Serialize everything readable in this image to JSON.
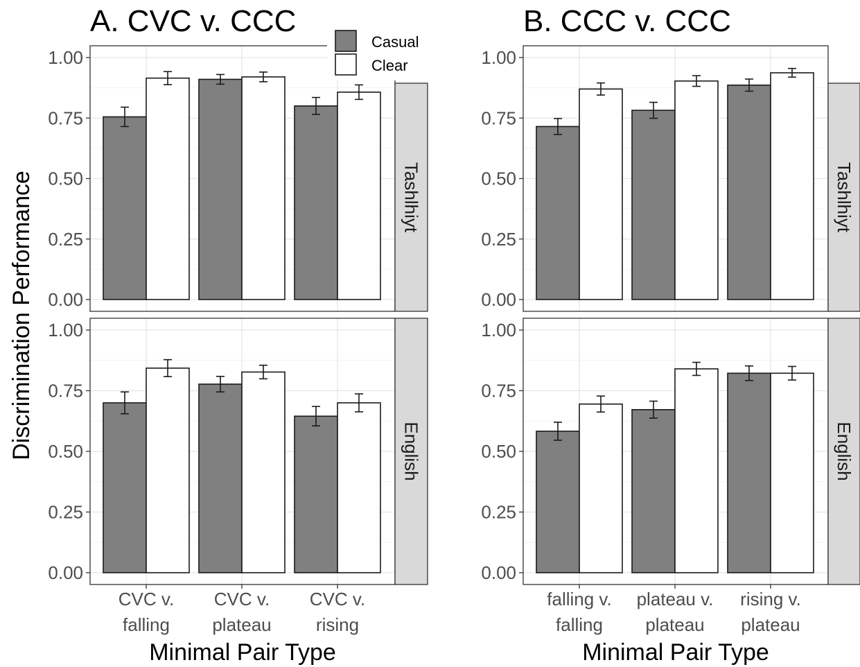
{
  "chart_data": {
    "type": "bar",
    "ylabel": "Discrimination Performance",
    "xlabel": "Minimal Pair Type",
    "ylim": [
      0,
      1.05
    ],
    "yticks": [
      "0.00",
      "0.25",
      "0.50",
      "0.75",
      "1.00"
    ],
    "legend": {
      "placement": "top-center",
      "entries": [
        {
          "name": "Casual",
          "color": "#808080"
        },
        {
          "name": "Clear",
          "color": "#ffffff"
        }
      ]
    },
    "grid": true,
    "panels": [
      {
        "title": "A. CVC v. CCC",
        "categories": [
          [
            "CVC v.",
            "falling"
          ],
          [
            "CVC v.",
            "plateau"
          ],
          [
            "CVC v.",
            "rising"
          ]
        ],
        "rows": [
          {
            "strip": "Tashlhiyt",
            "series": [
              {
                "name": "Casual",
                "values": [
                  0.755,
                  0.91,
                  0.8
                ],
                "err": [
                  0.04,
                  0.02,
                  0.035
                ]
              },
              {
                "name": "Clear",
                "values": [
                  0.915,
                  0.92,
                  0.857
                ],
                "err": [
                  0.027,
                  0.02,
                  0.03
                ]
              }
            ]
          },
          {
            "strip": "English",
            "series": [
              {
                "name": "Casual",
                "values": [
                  0.7,
                  0.777,
                  0.645
                ],
                "err": [
                  0.045,
                  0.032,
                  0.04
                ]
              },
              {
                "name": "Clear",
                "values": [
                  0.843,
                  0.827,
                  0.7
                ],
                "err": [
                  0.035,
                  0.028,
                  0.037
                ]
              }
            ]
          }
        ]
      },
      {
        "title": "B. CCC v. CCC",
        "categories": [
          [
            "falling v.",
            "falling"
          ],
          [
            "plateau v.",
            "plateau"
          ],
          [
            "rising v.",
            "plateau"
          ]
        ],
        "rows": [
          {
            "strip": "Tashlhiyt",
            "series": [
              {
                "name": "Casual",
                "values": [
                  0.715,
                  0.782,
                  0.886
                ],
                "err": [
                  0.033,
                  0.033,
                  0.025
                ]
              },
              {
                "name": "Clear",
                "values": [
                  0.87,
                  0.903,
                  0.937
                ],
                "err": [
                  0.025,
                  0.022,
                  0.018
                ]
              }
            ]
          },
          {
            "strip": "English",
            "series": [
              {
                "name": "Casual",
                "values": [
                  0.583,
                  0.672,
                  0.822
                ],
                "err": [
                  0.037,
                  0.035,
                  0.03
                ]
              },
              {
                "name": "Clear",
                "values": [
                  0.695,
                  0.84,
                  0.822
                ],
                "err": [
                  0.033,
                  0.027,
                  0.028
                ]
              }
            ]
          }
        ]
      }
    ]
  }
}
